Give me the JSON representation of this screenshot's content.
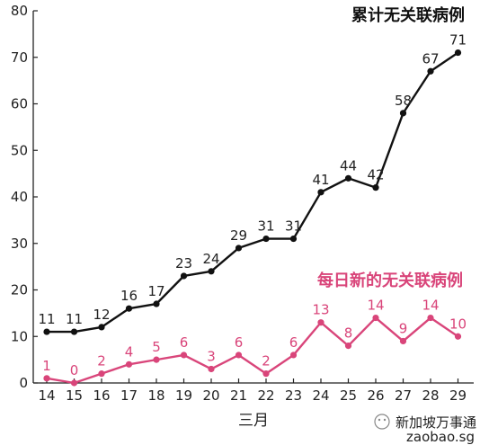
{
  "chart_data": {
    "type": "line",
    "x": [
      14,
      15,
      16,
      17,
      18,
      19,
      20,
      21,
      22,
      23,
      24,
      25,
      26,
      27,
      28,
      29
    ],
    "xlabel": "三月",
    "ylim": [
      0,
      80
    ],
    "yticks": [
      0,
      10,
      20,
      30,
      40,
      50,
      60,
      70,
      80
    ],
    "grid": false,
    "series": [
      {
        "name": "累计无关联病例",
        "color": "#111111",
        "values": [
          11,
          11,
          12,
          16,
          17,
          23,
          24,
          29,
          31,
          31,
          41,
          44,
          42,
          58,
          67,
          71
        ]
      },
      {
        "name": "每日新的无关联病例",
        "color": "#d9457a",
        "values": [
          1,
          0,
          2,
          4,
          5,
          6,
          3,
          6,
          2,
          6,
          13,
          8,
          14,
          9,
          14,
          10
        ]
      }
    ]
  },
  "watermark": {
    "brand": "新加坡万事通",
    "site": "zaobao.sg"
  }
}
